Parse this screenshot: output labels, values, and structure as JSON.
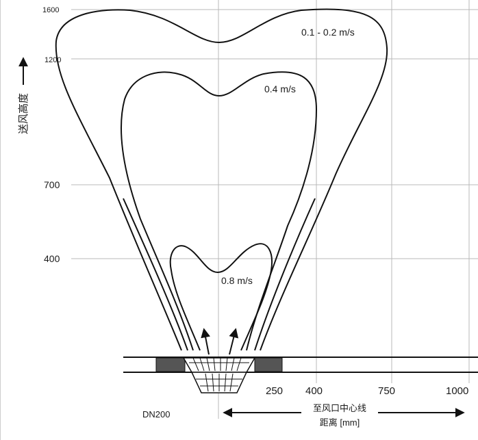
{
  "y_axis": {
    "title": "送风高度",
    "ticks": [
      "1600",
      "1200",
      "700",
      "400"
    ]
  },
  "x_axis": {
    "ticks": [
      "250",
      "400",
      "750",
      "1000"
    ],
    "caption_line1": "至风口中心线",
    "caption_line2": "距离 [mm]"
  },
  "diffuser": {
    "label": "DN200"
  },
  "contours": [
    {
      "label": "0.1 - 0.2 m/s"
    },
    {
      "label": "0.4 m/s"
    },
    {
      "label": "0.8 m/s"
    }
  ]
}
